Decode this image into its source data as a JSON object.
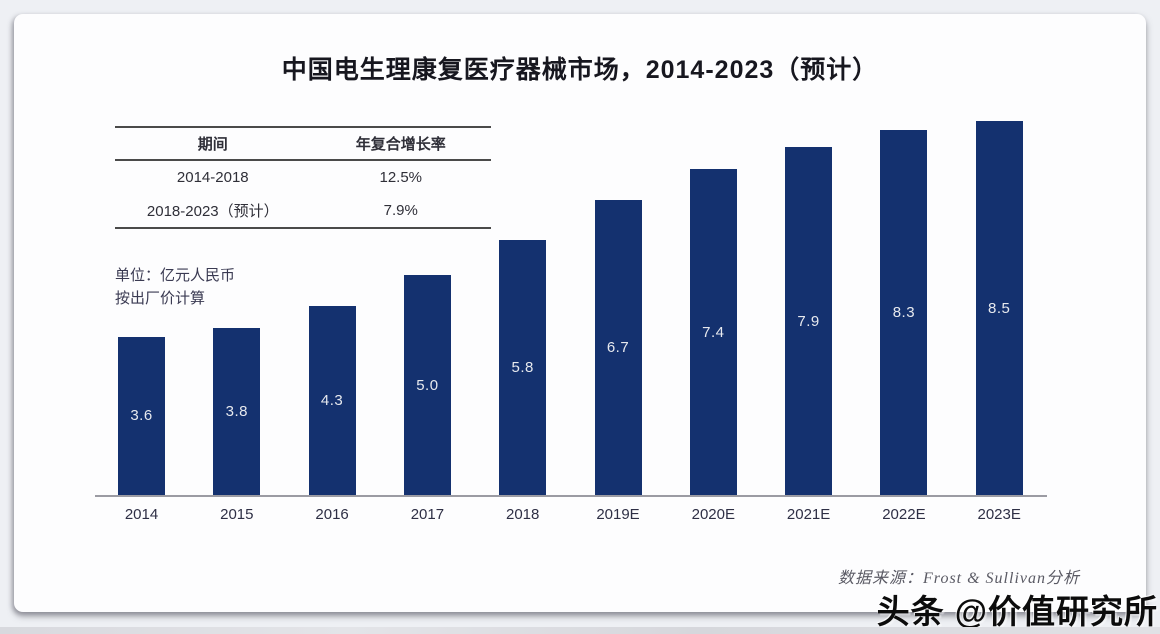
{
  "page": {
    "watermark": "头条 @价值研究所",
    "source": "数据来源：Frost & Sullivan分析"
  },
  "chart_data": {
    "type": "bar",
    "title": "中国电生理康复医疗器械市场，2014-2023（预计）",
    "unit_note_line1": "单位：亿元人民币",
    "unit_note_line2": "按出厂价计算",
    "categories": [
      "2014",
      "2015",
      "2016",
      "2017",
      "2018",
      "2019E",
      "2020E",
      "2021E",
      "2022E",
      "2023E"
    ],
    "values": [
      3.6,
      3.8,
      4.3,
      5.0,
      5.8,
      6.7,
      7.4,
      7.9,
      8.3,
      8.5
    ],
    "values_display": [
      "3.6",
      "3.8",
      "4.3",
      "5.0",
      "5.8",
      "6.7",
      "7.4",
      "7.9",
      "8.3",
      "8.5"
    ],
    "ylim": [
      0,
      9
    ],
    "grid": false,
    "legend": "none",
    "bar_color": "#14316f",
    "cagr_table": {
      "headers": [
        "期间",
        "年复合增长率"
      ],
      "rows": [
        [
          "2014-2018",
          "12.5%"
        ],
        [
          "2018-2023（预计）",
          "7.9%"
        ]
      ]
    }
  }
}
